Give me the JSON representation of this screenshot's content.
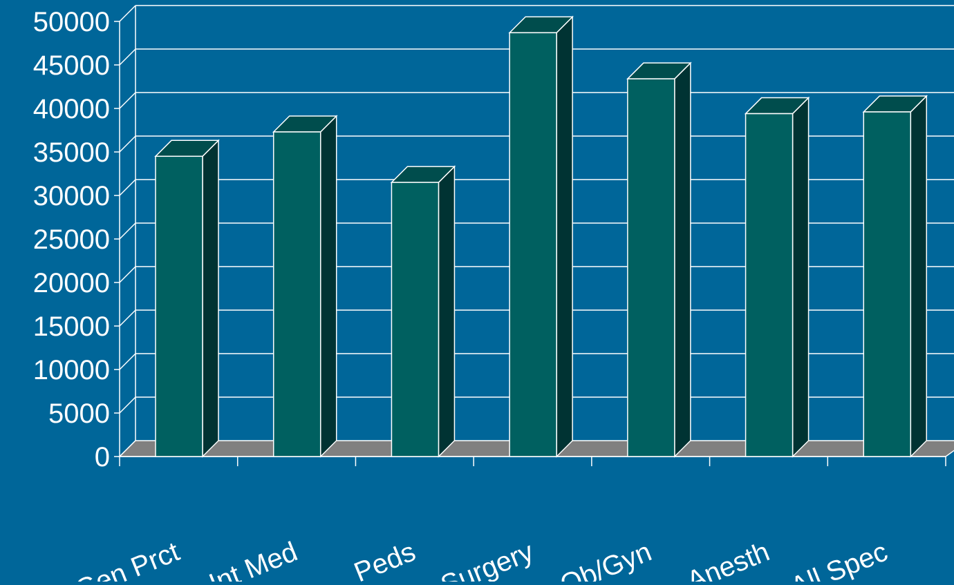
{
  "chart_data": {
    "type": "bar",
    "title": "",
    "xlabel": "",
    "ylabel": "",
    "categories": [
      "Gen Prct",
      "Int Med",
      "Peds",
      "Surgery",
      "Ob/Gyn",
      "Anesth",
      "All Spec"
    ],
    "values": [
      34500,
      37300,
      31500,
      48700,
      43400,
      39400,
      39600
    ],
    "ylim": [
      0,
      50000
    ],
    "yticks": [
      "0",
      "5000",
      "10000",
      "15000",
      "20000",
      "25000",
      "30000",
      "35000",
      "40000",
      "45000",
      "50000"
    ],
    "grid": true,
    "legend": "none",
    "style": "3d"
  },
  "colors": {
    "background": "#006699",
    "bar_front": "#006060",
    "bar_side": "#003333",
    "bar_top": "#004d4d",
    "floor": "#808080",
    "grid": "#ffffff",
    "text": "#ffffff"
  }
}
